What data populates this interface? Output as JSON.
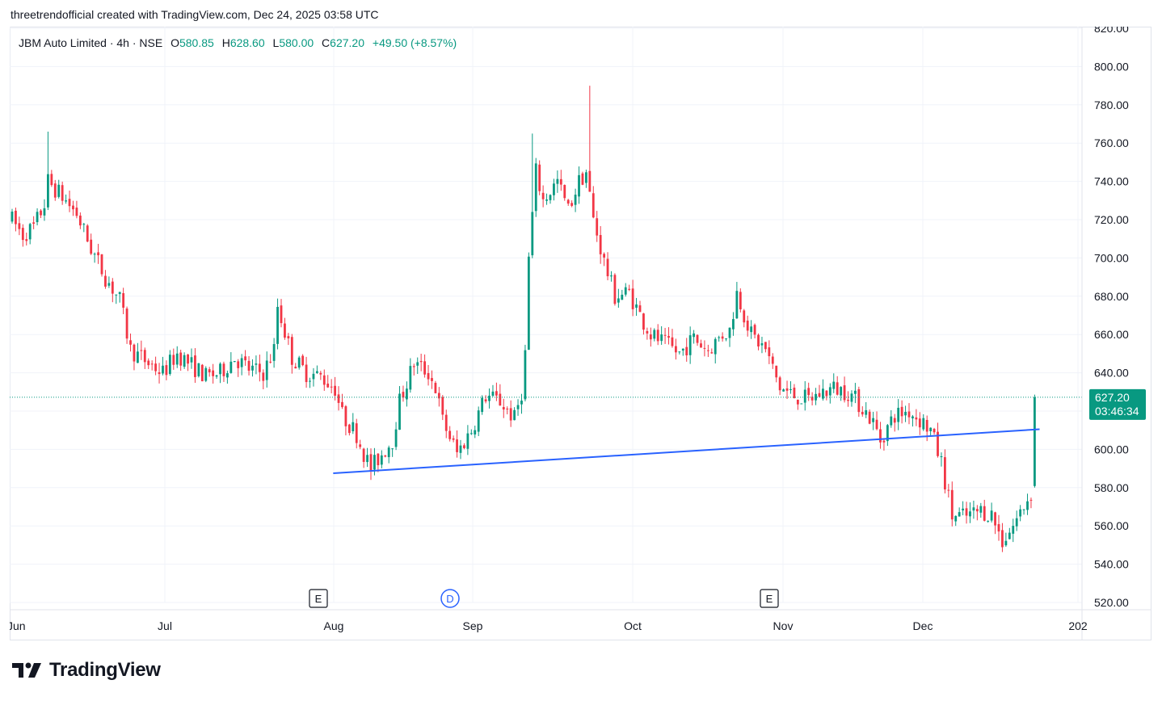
{
  "header": {
    "attribution": "threetrendofficial created with TradingView.com, Dec 24, 2025 03:58 UTC"
  },
  "legend": {
    "symbol": "JBM Auto Limited · 4h · NSE",
    "o_label": "O",
    "o_value": "580.85",
    "h_label": "H",
    "h_value": "628.60",
    "l_label": "L",
    "l_value": "580.00",
    "c_label": "C",
    "c_value": "627.20",
    "change": "+49.50 (+8.57%)"
  },
  "price_axis": {
    "ticks": [
      "820.00",
      "800.00",
      "780.00",
      "760.00",
      "740.00",
      "720.00",
      "700.00",
      "680.00",
      "660.00",
      "640.00",
      "620.00",
      "600.00",
      "580.00",
      "560.00",
      "540.00",
      "520.00"
    ]
  },
  "current_price": {
    "price": "627.20",
    "countdown": "03:46:34"
  },
  "time_axis": {
    "labels": [
      "Jun",
      "Jul",
      "Aug",
      "Sep",
      "Oct",
      "Nov",
      "Dec",
      "202"
    ]
  },
  "events": [
    {
      "type": "earnings",
      "letter": "E"
    },
    {
      "type": "dividend",
      "letter": "D"
    },
    {
      "type": "earnings",
      "letter": "E"
    }
  ],
  "footer": {
    "brand": "TradingView"
  },
  "colors": {
    "up": "#089981",
    "down": "#f23645",
    "trendline": "#2962ff",
    "grid": "#f0f3fa",
    "axis_text": "#131722",
    "price_tag_bg": "#089981"
  },
  "chart_data": {
    "type": "candlestick",
    "title": "JBM Auto Limited · 4h · NSE",
    "ylim": [
      515,
      822
    ],
    "y_ticks": [
      820,
      800,
      780,
      760,
      740,
      720,
      700,
      680,
      660,
      640,
      620,
      600,
      580,
      560,
      540,
      520
    ],
    "x_labels": [
      "Jun",
      "Jul",
      "Aug",
      "Sep",
      "Oct",
      "Nov",
      "Dec",
      "202"
    ],
    "current_price": 627.2,
    "last_bar": {
      "open": 580.85,
      "high": 628.6,
      "low": 580.0,
      "close": 627.2
    },
    "trendline": {
      "start": {
        "date": "2025-08-06",
        "price": 587.5
      },
      "end": {
        "date": "2025-12-27",
        "price": 610.5
      }
    },
    "events": [
      {
        "letter": "E",
        "date": "2025-07-28"
      },
      {
        "letter": "D",
        "date": "2025-08-22"
      },
      {
        "letter": "E",
        "date": "2025-10-28"
      }
    ],
    "path": [
      [
        0,
        720
      ],
      [
        3,
        712
      ],
      [
        6,
        716
      ],
      [
        9,
        728
      ],
      [
        10,
        740
      ],
      [
        14,
        732
      ],
      [
        18,
        723
      ],
      [
        22,
        705
      ],
      [
        26,
        690
      ],
      [
        30,
        678
      ],
      [
        33,
        652
      ],
      [
        38,
        645
      ],
      [
        42,
        640
      ],
      [
        46,
        650
      ],
      [
        50,
        644
      ],
      [
        54,
        638
      ],
      [
        58,
        640
      ],
      [
        62,
        648
      ],
      [
        66,
        642
      ],
      [
        70,
        640
      ],
      [
        73,
        652
      ],
      [
        74,
        675
      ],
      [
        78,
        648
      ],
      [
        82,
        640
      ],
      [
        86,
        638
      ],
      [
        90,
        632
      ],
      [
        92,
        618
      ],
      [
        96,
        608
      ],
      [
        98,
        598
      ],
      [
        100,
        590
      ],
      [
        102,
        595
      ],
      [
        106,
        605
      ],
      [
        108,
        625
      ],
      [
        112,
        645
      ],
      [
        116,
        640
      ],
      [
        118,
        632
      ],
      [
        120,
        615
      ],
      [
        124,
        598
      ],
      [
        128,
        610
      ],
      [
        132,
        628
      ],
      [
        136,
        625
      ],
      [
        140,
        616
      ],
      [
        142,
        630
      ],
      [
        143,
        650
      ],
      [
        144,
        700
      ],
      [
        146,
        745
      ],
      [
        148,
        730
      ],
      [
        152,
        740
      ],
      [
        155,
        725
      ],
      [
        158,
        740
      ],
      [
        160,
        745
      ],
      [
        162,
        720
      ],
      [
        165,
        698
      ],
      [
        168,
        680
      ],
      [
        172,
        682
      ],
      [
        175,
        670
      ],
      [
        178,
        660
      ],
      [
        182,
        655
      ],
      [
        186,
        650
      ],
      [
        190,
        658
      ],
      [
        194,
        652
      ],
      [
        198,
        660
      ],
      [
        200,
        662
      ],
      [
        202,
        682
      ],
      [
        206,
        660
      ],
      [
        210,
        652
      ],
      [
        214,
        632
      ],
      [
        218,
        628
      ],
      [
        222,
        626
      ],
      [
        226,
        630
      ],
      [
        229,
        632
      ],
      [
        233,
        630
      ],
      [
        237,
        622
      ],
      [
        240,
        614
      ],
      [
        242,
        605
      ],
      [
        246,
        618
      ],
      [
        250,
        620
      ],
      [
        254,
        614
      ],
      [
        256,
        610
      ],
      [
        259,
        593
      ],
      [
        262,
        565
      ],
      [
        266,
        565
      ],
      [
        270,
        568
      ],
      [
        273,
        566
      ],
      [
        276,
        552
      ],
      [
        279,
        560
      ],
      [
        283,
        574
      ],
      [
        285,
        580
      ]
    ],
    "last_index": 285
  }
}
